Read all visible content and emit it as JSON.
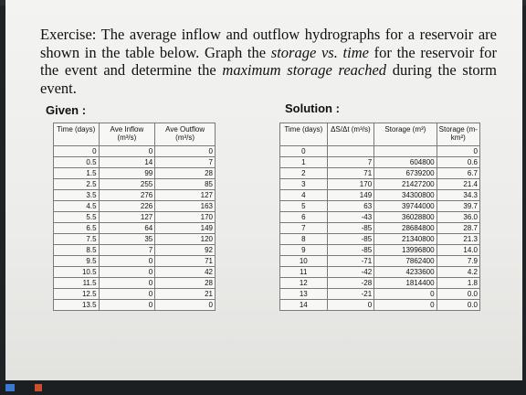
{
  "problem": {
    "part1": "Exercise:  The  average  inflow  and  outflow  hydrographs  for  a reservoir are shown in the table below.  Graph the ",
    "em1": "storage vs. time",
    "part2": " for the reservoir for the event and determine the ",
    "em2": "maximum storage reached",
    "part3": " during the storm event."
  },
  "given": {
    "label": "Given :",
    "headers": [
      "Time (days)",
      "Ave Inflow (m³/s)",
      "Ave Outflow (m³/s)"
    ],
    "rows": [
      [
        "0",
        "0",
        "0"
      ],
      [
        "0.5",
        "14",
        "7"
      ],
      [
        "1.5",
        "99",
        "28"
      ],
      [
        "2.5",
        "255",
        "85"
      ],
      [
        "3.5",
        "276",
        "127"
      ],
      [
        "4.5",
        "226",
        "163"
      ],
      [
        "5.5",
        "127",
        "170"
      ],
      [
        "6.5",
        "64",
        "149"
      ],
      [
        "7.5",
        "35",
        "120"
      ],
      [
        "8.5",
        "7",
        "92"
      ],
      [
        "9.5",
        "0",
        "71"
      ],
      [
        "10.5",
        "0",
        "42"
      ],
      [
        "11.5",
        "0",
        "28"
      ],
      [
        "12.5",
        "0",
        "21"
      ],
      [
        "13.5",
        "0",
        "0"
      ]
    ]
  },
  "solution": {
    "label": "Solution :",
    "headers": [
      "Time (days)",
      "ΔS/Δt (m³/s)",
      "Storage (m³)",
      "Storage (m-km²)"
    ],
    "rows": [
      [
        "0",
        "",
        "",
        "0"
      ],
      [
        "1",
        "7",
        "604800",
        "0.6"
      ],
      [
        "2",
        "71",
        "6739200",
        "6.7"
      ],
      [
        "3",
        "170",
        "21427200",
        "21.4"
      ],
      [
        "4",
        "149",
        "34300800",
        "34.3"
      ],
      [
        "5",
        "63",
        "39744000",
        "39.7"
      ],
      [
        "6",
        "-43",
        "36028800",
        "36.0"
      ],
      [
        "7",
        "-85",
        "28684800",
        "28.7"
      ],
      [
        "8",
        "-85",
        "21340800",
        "21.3"
      ],
      [
        "9",
        "-85",
        "13996800",
        "14.0"
      ],
      [
        "10",
        "-71",
        "7862400",
        "7.9"
      ],
      [
        "11",
        "-42",
        "4233600",
        "4.2"
      ],
      [
        "12",
        "-28",
        "1814400",
        "1.8"
      ],
      [
        "13",
        "-21",
        "0",
        "0.0"
      ],
      [
        "14",
        "0",
        "0",
        "0.0"
      ]
    ]
  }
}
